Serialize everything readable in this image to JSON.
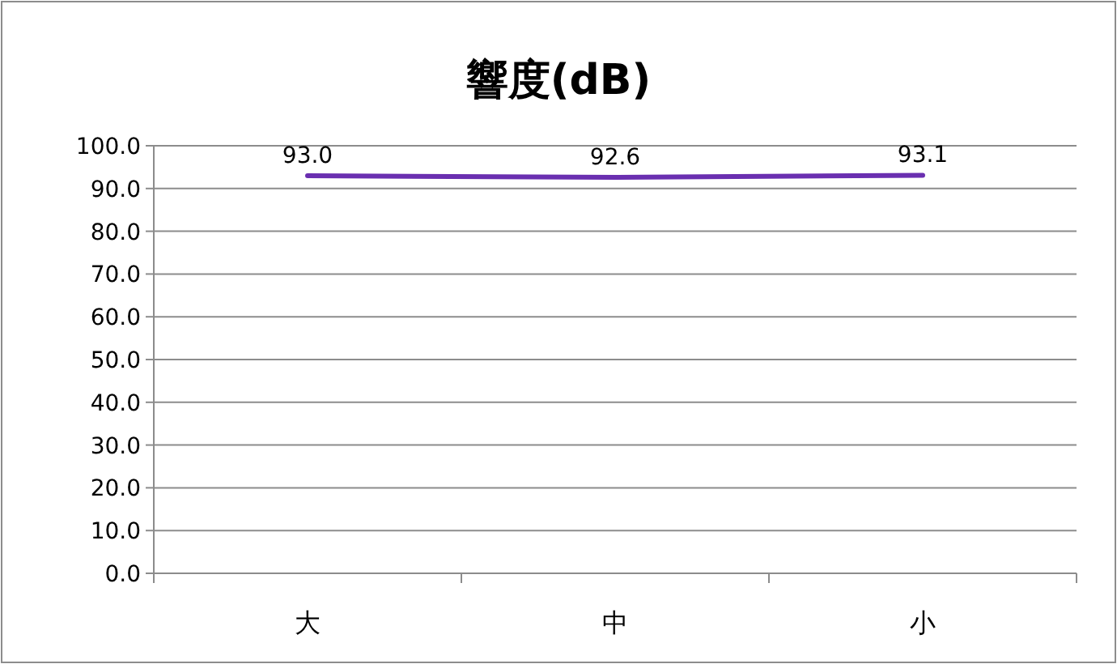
{
  "chart_data": {
    "type": "line",
    "title": "響度(dB)",
    "categories": [
      "大",
      "中",
      "小"
    ],
    "series": [
      {
        "color": "#6a2fb0",
        "values": [
          93.0,
          92.6,
          93.1
        ],
        "value_labels": [
          "93.0",
          "92.6",
          "93.1"
        ]
      }
    ],
    "ylim": [
      0,
      100
    ],
    "yticks": [
      {
        "value": 0,
        "label": "0.0"
      },
      {
        "value": 10,
        "label": "10.0"
      },
      {
        "value": 20,
        "label": "20.0"
      },
      {
        "value": 30,
        "label": "30.0"
      },
      {
        "value": 40,
        "label": "40.0"
      },
      {
        "value": 50,
        "label": "50.0"
      },
      {
        "value": 60,
        "label": "60.0"
      },
      {
        "value": 70,
        "label": "70.0"
      },
      {
        "value": 80,
        "label": "80.0"
      },
      {
        "value": 90,
        "label": "90.0"
      },
      {
        "value": 100,
        "label": "100.0"
      }
    ],
    "grid": "y",
    "marker": "none",
    "line_style": "solid"
  }
}
